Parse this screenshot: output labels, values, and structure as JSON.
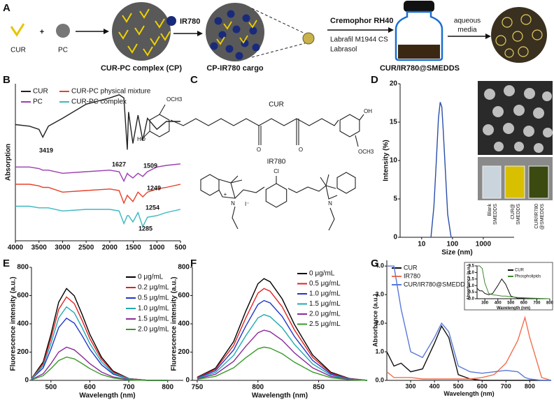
{
  "panel_labels": [
    "A",
    "B",
    "C",
    "D",
    "E",
    "F",
    "G"
  ],
  "scheme": {
    "cur": "CUR",
    "plus": "+",
    "pc": "PC",
    "ir780": "IR780",
    "cp": "CUR-PC complex (CP)",
    "cargo": "CP-IR780 cargo",
    "excipients": [
      "Cremophor RH40",
      "Labrafil M1944 CS",
      "Labrasol"
    ],
    "aqueous": "aqueous",
    "media": "media",
    "product": "CUR/IR780@SMEDDS"
  },
  "structures": {
    "cur": {
      "name": "CUR",
      "labels": [
        "OCH3",
        "HO",
        "O",
        "O",
        "OH",
        "OCH3"
      ]
    },
    "ir780": {
      "name": "IR780",
      "labels": [
        "Cl",
        "N",
        "+",
        "I⁻",
        "N"
      ]
    }
  },
  "photo_labels": [
    [
      "Blank",
      "SMEDDS"
    ],
    [
      "CUR@",
      "SMEDDS"
    ],
    [
      "CUR/IR780",
      "@SMEDDS"
    ]
  ],
  "chart_data": [
    {
      "type": "line",
      "ylabel": "Absorption",
      "x": [
        4000,
        3700,
        3500,
        3419,
        3300,
        3000,
        2500,
        2000,
        1800,
        1700,
        1627,
        1600,
        1509,
        1400,
        1300,
        1200,
        1000,
        800,
        500
      ],
      "xlim": [
        4000,
        500
      ],
      "xticks": [
        4000,
        3500,
        3000,
        2500,
        2000,
        1500,
        1000,
        500
      ],
      "ylim": [
        0,
        100
      ],
      "series": [
        {
          "name": "CUR",
          "color": "#222222",
          "values": [
            74,
            73,
            71,
            66,
            73,
            78,
            87,
            91,
            93,
            91,
            58,
            82,
            62,
            80,
            64,
            78,
            71,
            76,
            76
          ]
        },
        {
          "name": "PC",
          "color": "#9b3fb0",
          "values": [
            47,
            47,
            46,
            45,
            45,
            43,
            44,
            45,
            44,
            38,
            43,
            42,
            40,
            43,
            41,
            44,
            47,
            48,
            49
          ]
        },
        {
          "name": "CUR-PC physical mixture",
          "color": "#e8402a",
          "values": [
            36,
            36,
            35,
            34,
            34,
            31,
            32,
            33,
            32,
            24,
            29,
            28,
            25,
            31,
            28,
            31,
            33,
            34,
            36
          ]
        },
        {
          "name": "CUR-PC complex",
          "color": "#3bb8c0",
          "values": [
            22,
            22,
            21,
            21,
            21,
            19,
            20,
            20,
            19,
            11,
            16,
            16,
            12,
            18,
            9,
            15,
            16,
            18,
            20
          ]
        }
      ],
      "annotations": [
        "3419",
        "1627",
        "1509",
        "1249",
        "1254",
        "1285"
      ]
    },
    {
      "type": "line",
      "xlabel": "Size (nm)",
      "ylabel": "Intensity (%)",
      "log_x": true,
      "x": [
        20,
        25,
        30,
        35,
        40,
        45,
        50,
        60,
        70,
        90
      ],
      "xlim": [
        2,
        10000
      ],
      "xticks": [
        10,
        100,
        1000
      ],
      "ylim": [
        0,
        20
      ],
      "yticks": [
        0,
        5,
        10,
        15,
        20
      ],
      "series": [
        {
          "color": "#2a4fa8",
          "values": [
            0,
            4,
            10,
            15.5,
            17.6,
            17,
            14,
            8,
            3,
            0
          ]
        }
      ]
    },
    {
      "type": "line",
      "xlabel": "Wavelength (nm)",
      "ylabel": "Fluorescence intensity (a.u.)",
      "x": [
        450,
        480,
        500,
        520,
        540,
        560,
        580,
        600,
        630,
        660,
        700,
        750,
        800
      ],
      "xlim": [
        450,
        840
      ],
      "xticks": [
        500,
        600,
        700,
        800
      ],
      "ylim": [
        0,
        800
      ],
      "yticks": [
        0,
        200,
        400,
        600,
        800
      ],
      "series": [
        {
          "name": "0 μg/mL",
          "color": "#000000",
          "values": [
            13,
            130,
            325,
            553,
            650,
            598,
            468,
            325,
            163,
            65,
            13,
            0,
            0
          ]
        },
        {
          "name": "0.2 μg/mL",
          "color": "#e02020",
          "values": [
            12,
            118,
            295,
            502,
            590,
            543,
            425,
            295,
            148,
            59,
            12,
            0,
            0
          ]
        },
        {
          "name": "0.5 μg/mL",
          "color": "#2036c8",
          "values": [
            9,
            88,
            220,
            374,
            440,
            405,
            317,
            220,
            110,
            44,
            9,
            0,
            0
          ]
        },
        {
          "name": "1.0 μg/mL",
          "color": "#20a8b0",
          "values": [
            10,
            104,
            260,
            442,
            520,
            478,
            374,
            260,
            130,
            52,
            10,
            0,
            0
          ]
        },
        {
          "name": "1.5 μg/mL",
          "color": "#8a2a9a",
          "values": [
            5,
            47,
            118,
            200,
            235,
            216,
            169,
            118,
            59,
            24,
            5,
            0,
            0
          ]
        },
        {
          "name": "2.0 μg/mL",
          "color": "#3a9a2a",
          "values": [
            3,
            33,
            83,
            140,
            165,
            152,
            119,
            83,
            41,
            17,
            3,
            0,
            0
          ]
        }
      ]
    },
    {
      "type": "line",
      "xlabel": "Wavelength (nm)",
      "ylabel": "Fluorescence intensity (a.u.)",
      "x": [
        750,
        765,
        780,
        790,
        800,
        805,
        810,
        820,
        830,
        845,
        860,
        875,
        890
      ],
      "xlim": [
        746,
        890
      ],
      "xticks": [
        750,
        800,
        850
      ],
      "ylim": [
        0,
        800
      ],
      "yticks": [
        0,
        200,
        400,
        600,
        800
      ],
      "series": [
        {
          "name": "0 μg/mL",
          "color": "#000000",
          "values": [
            22,
            86,
            274,
            490,
            684,
            720,
            698,
            576,
            396,
            180,
            58,
            14,
            0
          ]
        },
        {
          "name": "0.5 μg/mL",
          "color": "#e02020",
          "values": [
            20,
            78,
            247,
            442,
            618,
            650,
            631,
            520,
            358,
            163,
            52,
            13,
            0
          ]
        },
        {
          "name": "1.0 μg/mL",
          "color": "#2036c8",
          "values": [
            17,
            68,
            215,
            384,
            537,
            565,
            548,
            452,
            311,
            141,
            45,
            11,
            0
          ]
        },
        {
          "name": "1.5 μg/mL",
          "color": "#20a8b0",
          "values": [
            14,
            56,
            177,
            316,
            442,
            465,
            451,
            372,
            256,
            116,
            37,
            9,
            0
          ]
        },
        {
          "name": "2.0 μg/mL",
          "color": "#8a2a9a",
          "values": [
            11,
            43,
            135,
            241,
            337,
            355,
            344,
            284,
            195,
            89,
            28,
            7,
            0
          ]
        },
        {
          "name": "2.5 μg/mL",
          "color": "#3a9a2a",
          "values": [
            7,
            28,
            89,
            160,
            223,
            235,
            228,
            188,
            129,
            59,
            19,
            5,
            0
          ]
        }
      ]
    },
    {
      "type": "line",
      "xlabel": "Wavelength (nm)",
      "ylabel": "Absorbance (a.u.)",
      "x": [
        200,
        230,
        260,
        300,
        350,
        400,
        430,
        460,
        500,
        550,
        600,
        650,
        700,
        750,
        780,
        800,
        850,
        890
      ],
      "xlim": [
        200,
        890
      ],
      "xticks": [
        300,
        400,
        500,
        600,
        700,
        800
      ],
      "ylim": [
        0,
        4.2
      ],
      "yticks": [
        {
          "value": 0,
          "label": "0.0"
        },
        {
          "value": 1,
          "label": "1.0"
        },
        {
          "value": 2,
          "label": "2.0"
        },
        {
          "value": 3,
          "label": "3.0"
        },
        {
          "value": 4,
          "label": "4.0"
        }
      ],
      "series": [
        {
          "name": "CUR",
          "color": "#111111",
          "values": [
            1.0,
            0.5,
            0.6,
            0.3,
            0.4,
            1.3,
            1.9,
            1.5,
            0.2,
            0.05,
            0,
            0,
            0,
            0,
            0,
            0,
            0,
            0
          ]
        },
        {
          "name": "IR780",
          "color": "#f07050",
          "values": [
            0.3,
            0.1,
            0.1,
            0.1,
            0.05,
            0.05,
            0.05,
            0.05,
            0.05,
            0.05,
            0.1,
            0.2,
            0.6,
            1.4,
            2.2,
            1.5,
            0.1,
            0
          ]
        },
        {
          "name": "CUR/IR780@SMEDDS",
          "color": "#5a78d8",
          "values": [
            4.0,
            4.0,
            2.5,
            1.0,
            0.8,
            1.5,
            2.0,
            1.7,
            0.5,
            0.3,
            0.25,
            0.3,
            0.35,
            0.3,
            0.1,
            0.05,
            0,
            0
          ]
        }
      ]
    },
    {
      "type": "line",
      "xlabel": "Wavelength (nm)",
      "ylabel": "Absorbance (a.u.)",
      "x": [
        240,
        260,
        280,
        300,
        330,
        360,
        400,
        430,
        460,
        500,
        550,
        650,
        800
      ],
      "xlim": [
        240,
        800
      ],
      "xticks": [
        300,
        400,
        500,
        600,
        700,
        800
      ],
      "ylim": [
        0,
        2.5
      ],
      "yticks": [
        {
          "value": 0,
          "label": "0.0"
        },
        {
          "value": 0.5,
          "label": "0.5"
        },
        {
          "value": 1,
          "label": "1.0"
        },
        {
          "value": 1.5,
          "label": "1.5"
        },
        {
          "value": 2,
          "label": "2.0"
        },
        {
          "value": 2.5,
          "label": "2.5"
        }
      ],
      "series": [
        {
          "name": "CUR",
          "color": "#111111",
          "values": [
            0.8,
            0.6,
            0.6,
            0.4,
            0.3,
            0.4,
            1.0,
            1.5,
            1.1,
            0.2,
            0.05,
            0,
            0
          ]
        },
        {
          "name": "Phospholipids",
          "color": "#3a8a2a",
          "values": [
            2.5,
            2.5,
            2.3,
            1.2,
            0.4,
            0.3,
            0.25,
            0.2,
            0.2,
            0.15,
            0.1,
            0.05,
            0
          ]
        }
      ]
    }
  ]
}
